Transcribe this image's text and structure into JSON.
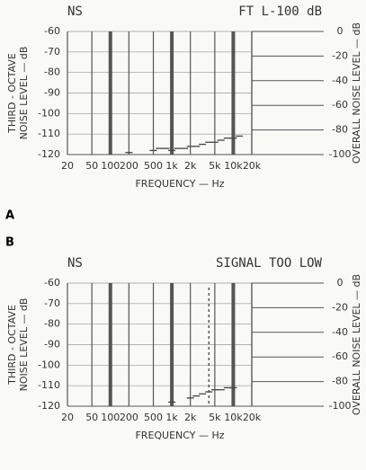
{
  "chart_data": [
    {
      "type": "scatter",
      "panel": "A",
      "title": "NS",
      "annotation": "FT L-100 dB",
      "y_label_lines": [
        "THIRD - OCTAVE",
        "NOISE LEVEL — dB"
      ],
      "y2_label": "OVERALL NOISE LEVEL — dB",
      "x_label": "FREQUENCY — Hz",
      "x_log": true,
      "xlim": [
        20,
        20000
      ],
      "xticks": [
        {
          "value": 20,
          "label": "20"
        },
        {
          "value": 50,
          "label": "50"
        },
        {
          "value": 100,
          "label": "100"
        },
        {
          "value": 200,
          "label": "200"
        },
        {
          "value": 500,
          "label": "500"
        },
        {
          "value": 1000,
          "label": "1k"
        },
        {
          "value": 2000,
          "label": "2k"
        },
        {
          "value": 5000,
          "label": "5k"
        },
        {
          "value": 10000,
          "label": "10k"
        },
        {
          "value": 20000,
          "label": "20k"
        }
      ],
      "ylim": [
        -120,
        -60
      ],
      "yticks": [
        -60,
        -70,
        -80,
        -90,
        -100,
        -110,
        -120
      ],
      "y2lim": [
        -100,
        0
      ],
      "y2ticks": [
        0,
        -20,
        -40,
        -60,
        -80,
        -100
      ],
      "color": "#444",
      "x": [
        200,
        500,
        630,
        800,
        1000,
        1250,
        1600,
        2000,
        2500,
        3150,
        4000,
        5000,
        6300,
        8000,
        10000,
        12500
      ],
      "values": [
        -119,
        -118,
        -117,
        -117,
        -118,
        -117,
        -117,
        -116,
        -116,
        -115,
        -114,
        -114,
        -113,
        -112,
        -112,
        -111
      ]
    },
    {
      "type": "scatter",
      "panel": "B",
      "title": "NS",
      "annotation": "SIGNAL TOO LOW",
      "y_label_lines": [
        "THIRD - OCTAVE",
        "NOISE LEVEL — dB"
      ],
      "y2_label": "OVERALL NOISE LEVEL — dB",
      "x_label": "FREQUENCY — Hz",
      "x_log": true,
      "xlim": [
        20,
        20000
      ],
      "xticks": [
        {
          "value": 20,
          "label": "20"
        },
        {
          "value": 50,
          "label": "50"
        },
        {
          "value": 100,
          "label": "100"
        },
        {
          "value": 200,
          "label": "200"
        },
        {
          "value": 500,
          "label": "500"
        },
        {
          "value": 1000,
          "label": "1k"
        },
        {
          "value": 2000,
          "label": "2k"
        },
        {
          "value": 5000,
          "label": "5k"
        },
        {
          "value": 10000,
          "label": "10k"
        },
        {
          "value": 20000,
          "label": "20k"
        }
      ],
      "ylim": [
        -120,
        -60
      ],
      "yticks": [
        -60,
        -70,
        -80,
        -90,
        -100,
        -110,
        -120
      ],
      "y2lim": [
        -100,
        0
      ],
      "y2ticks": [
        0,
        -20,
        -40,
        -60,
        -80,
        -100
      ],
      "color": "#444",
      "marker_x": 4000,
      "x": [
        1000,
        2000,
        2500,
        3150,
        4000,
        5000,
        6300,
        8000,
        10000
      ],
      "values": [
        -118,
        -116,
        -115,
        -114,
        -113,
        -112,
        -112,
        -111,
        -111
      ]
    }
  ]
}
